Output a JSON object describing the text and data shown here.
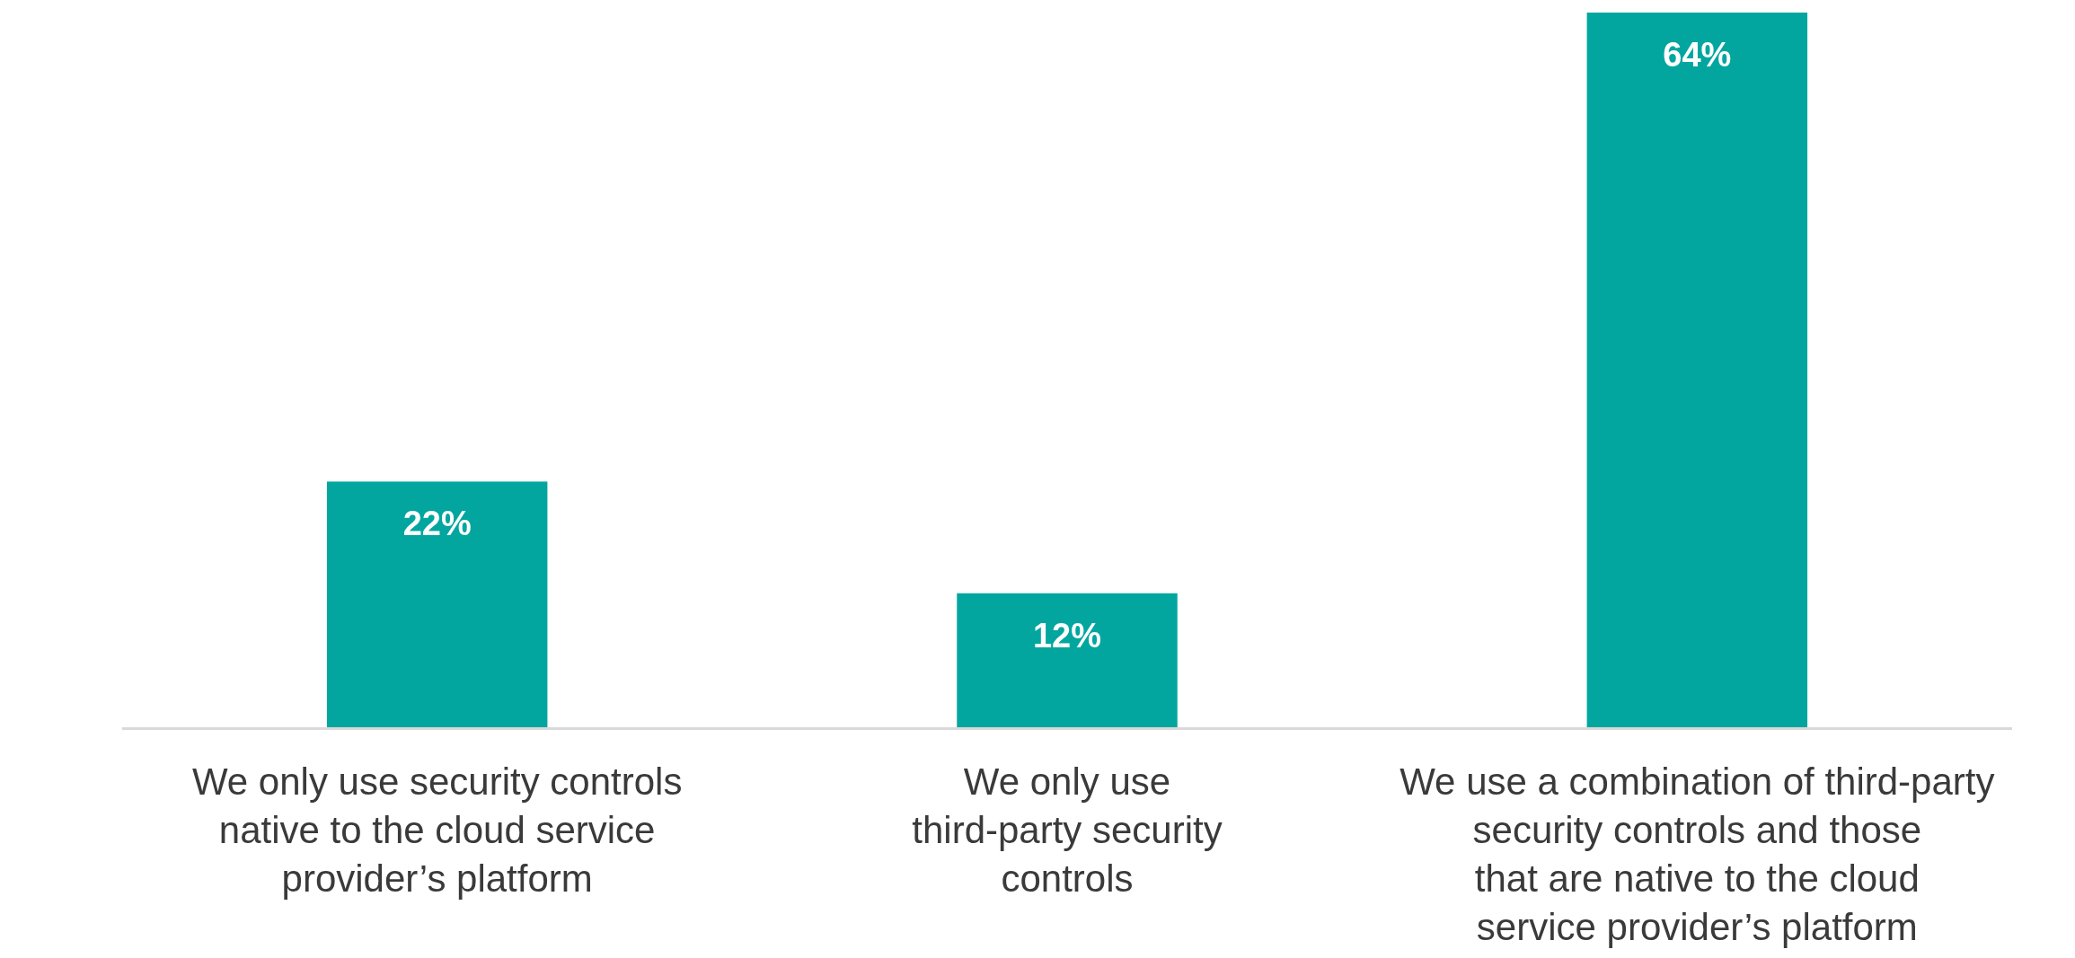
{
  "chart_data": {
    "type": "bar",
    "categories": [
      "We only use security controls\nnative to the cloud service\nprovider’s platform",
      "We only use\nthird-party security\ncontrols",
      "We use a combination of third-party\nsecurity controls and those\nthat are native to the cloud\nservice provider’s platform"
    ],
    "values": [
      22,
      12,
      64
    ],
    "color": "#02a69f",
    "value_labels": [
      "22%",
      "12%",
      "64%"
    ]
  }
}
